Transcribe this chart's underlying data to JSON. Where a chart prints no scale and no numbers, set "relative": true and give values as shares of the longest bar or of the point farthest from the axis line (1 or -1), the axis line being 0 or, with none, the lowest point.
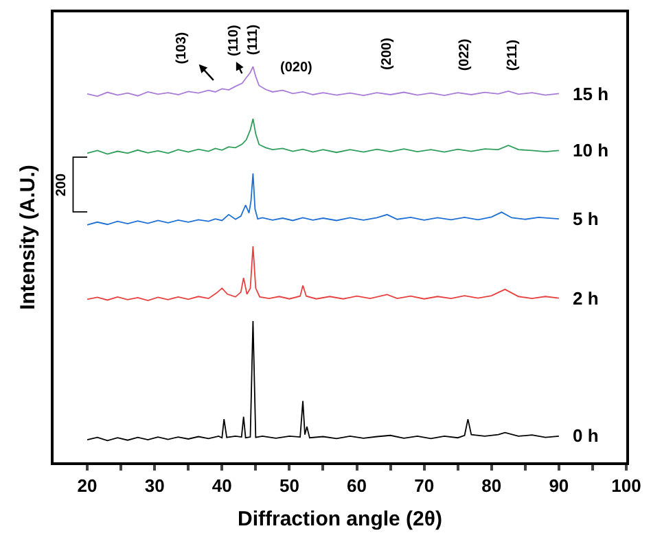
{
  "chart_data": {
    "type": "line",
    "relative": true,
    "xlabel": "Diffraction angle (2θ)",
    "ylabel": "Intensity (A.U.)",
    "xlim": [
      15,
      100
    ],
    "xticks": [
      20,
      {
        "value": 25,
        "label": null
      },
      30,
      {
        "value": 35,
        "label": null
      },
      40,
      {
        "value": 45,
        "label": null
      },
      50,
      {
        "value": 55,
        "label": null
      },
      60,
      {
        "value": 65,
        "label": null
      },
      70,
      {
        "value": 75,
        "label": null
      },
      80,
      {
        "value": 85,
        "label": null
      },
      90,
      {
        "value": 95,
        "label": null
      },
      100
    ],
    "tick_labels": "x",
    "legend": false,
    "marker": "none",
    "line_style": "solid",
    "series": [
      {
        "name": "15 h",
        "color": "#a97bd9",
        "x": [
          20,
          21.5,
          23,
          24.5,
          26,
          27.5,
          29,
          30.5,
          32,
          33.5,
          35,
          36.5,
          38,
          39,
          40,
          41,
          42,
          43,
          43.6,
          44.2,
          44.6,
          45,
          45.5,
          46.5,
          47.5,
          49,
          50.5,
          52,
          53.5,
          55,
          57,
          59,
          61,
          63,
          65,
          67,
          69,
          71,
          73,
          75,
          77,
          79,
          81,
          82.5,
          84,
          86,
          88,
          90
        ],
        "values": [
          0.931,
          0.925,
          0.935,
          0.928,
          0.933,
          0.926,
          0.936,
          0.93,
          0.934,
          0.929,
          0.937,
          0.933,
          0.94,
          0.936,
          0.944,
          0.941,
          0.95,
          0.958,
          0.972,
          0.985,
          1.0,
          0.975,
          0.952,
          0.942,
          0.936,
          0.94,
          0.932,
          0.936,
          0.929,
          0.934,
          0.928,
          0.933,
          0.927,
          0.934,
          0.929,
          0.935,
          0.928,
          0.933,
          0.927,
          0.934,
          0.929,
          0.935,
          0.931,
          0.938,
          0.93,
          0.934,
          0.928,
          0.932
        ]
      },
      {
        "name": "10 h",
        "color": "#2e9e5b",
        "x": [
          20,
          21.5,
          23,
          24.5,
          26,
          27.5,
          29,
          30.5,
          32,
          33.5,
          35,
          36.5,
          38,
          39,
          40,
          41,
          42,
          43,
          43.6,
          44.2,
          44.6,
          45,
          45.5,
          46.5,
          47.5,
          49,
          50.5,
          52,
          53.5,
          55,
          57,
          59,
          61,
          63,
          65,
          67,
          69,
          71,
          73,
          75,
          77,
          79,
          81,
          82.5,
          84,
          86,
          88,
          90
        ],
        "values": [
          0.781,
          0.788,
          0.779,
          0.786,
          0.781,
          0.789,
          0.782,
          0.787,
          0.781,
          0.79,
          0.784,
          0.791,
          0.786,
          0.793,
          0.789,
          0.797,
          0.795,
          0.804,
          0.815,
          0.84,
          0.868,
          0.83,
          0.803,
          0.795,
          0.79,
          0.793,
          0.786,
          0.791,
          0.784,
          0.79,
          0.783,
          0.79,
          0.784,
          0.791,
          0.785,
          0.792,
          0.785,
          0.79,
          0.784,
          0.791,
          0.786,
          0.792,
          0.79,
          0.801,
          0.79,
          0.788,
          0.785,
          0.788
        ]
      },
      {
        "name": "5 h",
        "color": "#1e6fd6",
        "x": [
          20,
          21.5,
          23,
          24.5,
          26,
          27.5,
          29,
          30.5,
          32,
          33.5,
          35,
          36.5,
          38,
          39,
          40,
          41,
          42,
          42.8,
          43.5,
          44,
          44.3,
          44.6,
          44.9,
          45.3,
          46,
          47.5,
          49,
          50.5,
          52,
          53.5,
          55,
          57,
          59,
          61,
          63,
          64.5,
          66,
          68,
          70,
          72,
          74,
          76,
          78,
          80,
          81.5,
          83,
          85,
          87,
          90
        ],
        "values": [
          0.6,
          0.607,
          0.601,
          0.609,
          0.603,
          0.61,
          0.604,
          0.611,
          0.605,
          0.612,
          0.607,
          0.613,
          0.609,
          0.615,
          0.611,
          0.626,
          0.614,
          0.622,
          0.65,
          0.63,
          0.66,
          0.73,
          0.64,
          0.615,
          0.618,
          0.612,
          0.617,
          0.611,
          0.618,
          0.612,
          0.617,
          0.611,
          0.618,
          0.612,
          0.618,
          0.626,
          0.614,
          0.619,
          0.612,
          0.618,
          0.613,
          0.619,
          0.613,
          0.62,
          0.632,
          0.618,
          0.614,
          0.619,
          0.615
        ]
      },
      {
        "name": "2 h",
        "color": "#e8403f",
        "x": [
          20,
          21.5,
          23,
          24.5,
          26,
          27.5,
          29,
          30.5,
          32,
          33.5,
          35,
          36.5,
          38,
          39.2,
          40,
          40.8,
          42,
          42.8,
          43.2,
          43.7,
          44.2,
          44.6,
          45,
          45.6,
          47,
          48.5,
          50,
          51.6,
          52,
          52.5,
          54,
          56,
          58,
          60,
          62,
          64.5,
          66,
          68,
          70,
          72,
          74,
          76,
          78,
          80,
          82,
          84,
          86,
          88,
          90
        ],
        "values": [
          0.412,
          0.417,
          0.41,
          0.418,
          0.411,
          0.416,
          0.409,
          0.417,
          0.411,
          0.418,
          0.412,
          0.419,
          0.414,
          0.428,
          0.44,
          0.425,
          0.418,
          0.43,
          0.466,
          0.425,
          0.44,
          0.546,
          0.44,
          0.418,
          0.414,
          0.419,
          0.413,
          0.42,
          0.447,
          0.42,
          0.413,
          0.419,
          0.413,
          0.42,
          0.414,
          0.424,
          0.414,
          0.42,
          0.413,
          0.419,
          0.414,
          0.421,
          0.415,
          0.421,
          0.437,
          0.419,
          0.414,
          0.419,
          0.415
        ]
      },
      {
        "name": "0 h",
        "color": "#000000",
        "x": [
          20,
          21.5,
          23,
          24.5,
          26,
          27.5,
          29,
          30.5,
          32,
          33.5,
          35,
          36.5,
          38,
          39.5,
          40,
          40.3,
          40.7,
          42,
          42.9,
          43.2,
          43.5,
          44.2,
          44.6,
          45,
          46,
          48,
          50,
          51.6,
          52,
          52.3,
          52.6,
          53,
          55,
          57,
          59,
          61,
          63,
          65,
          67,
          69,
          71,
          73,
          75,
          76,
          76.5,
          77,
          79,
          81,
          82,
          84,
          86,
          88,
          90
        ],
        "values": [
          0.057,
          0.063,
          0.055,
          0.062,
          0.056,
          0.063,
          0.057,
          0.064,
          0.058,
          0.064,
          0.059,
          0.065,
          0.06,
          0.066,
          0.062,
          0.109,
          0.063,
          0.066,
          0.064,
          0.115,
          0.062,
          0.064,
          0.357,
          0.063,
          0.066,
          0.061,
          0.066,
          0.064,
          0.155,
          0.07,
          0.09,
          0.062,
          0.065,
          0.06,
          0.066,
          0.061,
          0.065,
          0.068,
          0.061,
          0.066,
          0.06,
          0.066,
          0.062,
          0.068,
          0.109,
          0.07,
          0.066,
          0.07,
          0.075,
          0.066,
          0.069,
          0.063,
          0.066
        ]
      },
      {
        "color": "#000000",
        "x": [
          20,
          17.9,
          17.9,
          20
        ],
        "values": [
          0.771,
          0.771,
          0.633,
          0.633
        ]
      }
    ],
    "annotations": [
      "(103)",
      "(110)",
      "(111)",
      "(020)",
      "(200)",
      "(022)",
      "(211)",
      "200"
    ]
  }
}
